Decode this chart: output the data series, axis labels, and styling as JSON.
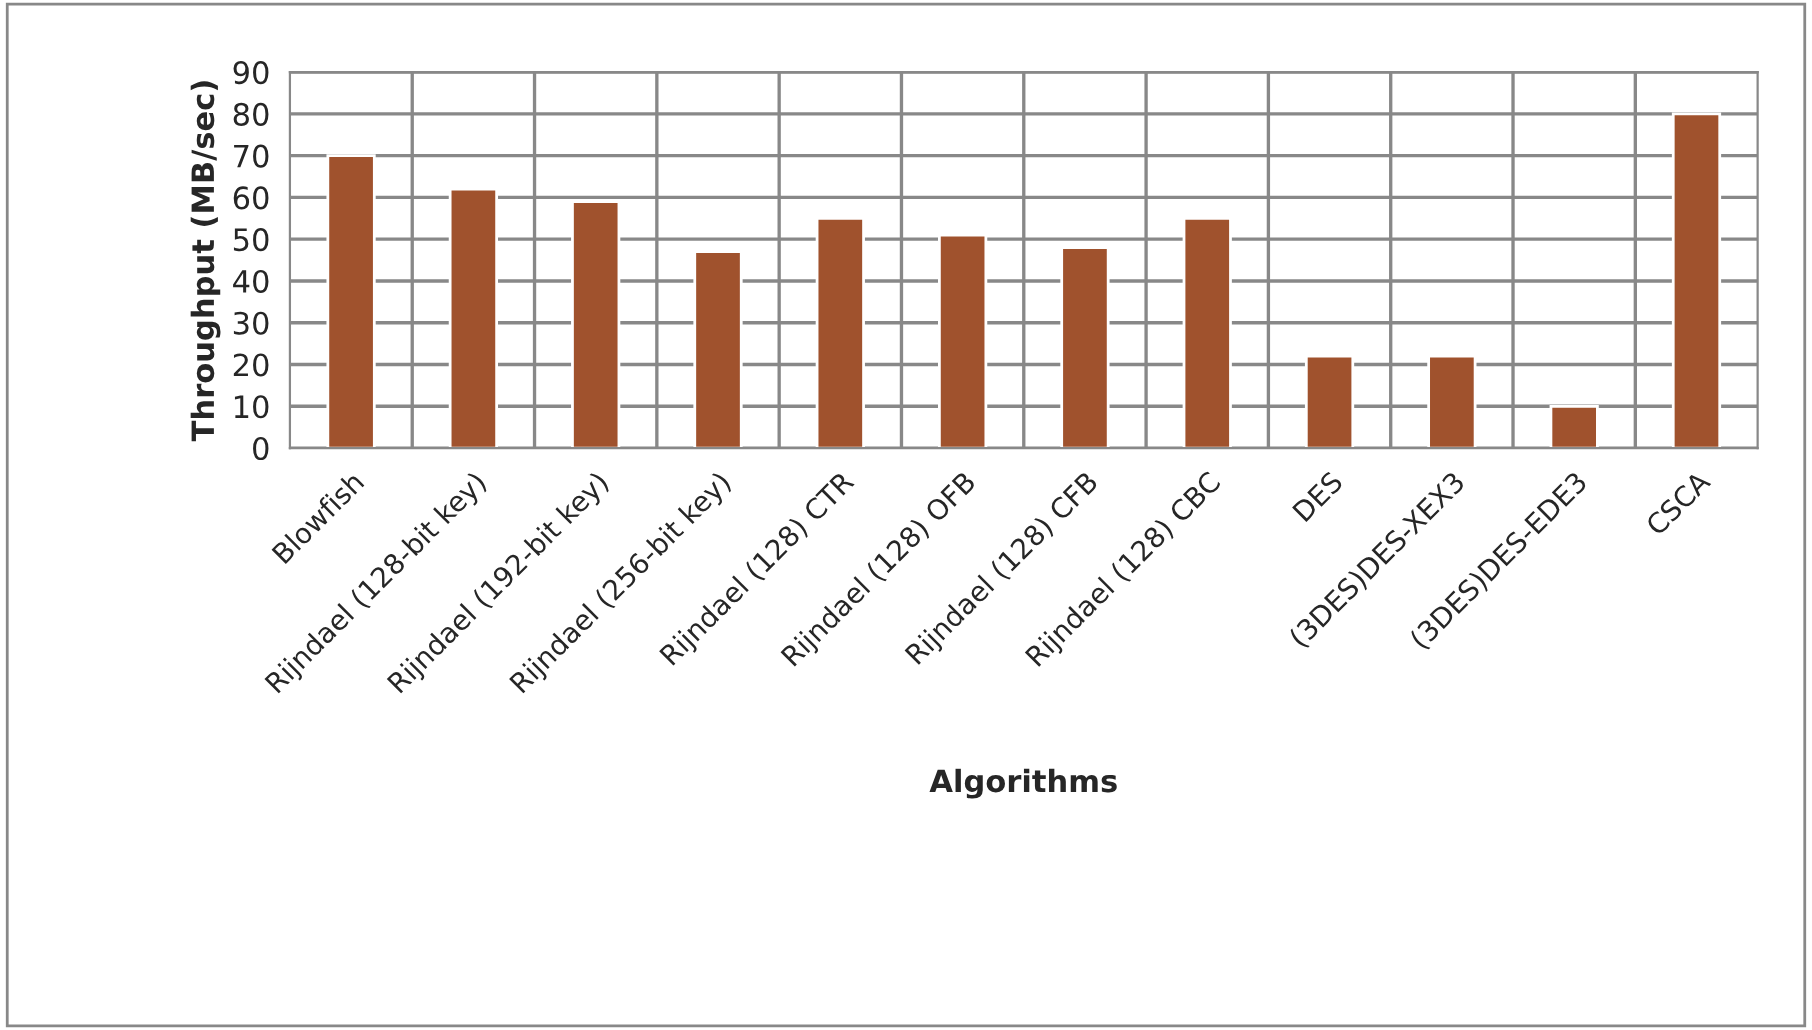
{
  "chart_data": {
    "type": "bar",
    "xlabel": "Algorithms",
    "ylabel": "Throughput (MB/sec)",
    "categories": [
      "Blowfish",
      "Rijndael (128-bit key)",
      "Rijndael (192-bit key)",
      "Rijndael (256-bit key)",
      "Rijndael (128) CTR",
      "Rijndael (128) OFB",
      "Rijndael (128) CFB",
      "Rijndael (128) CBC",
      "DES",
      "(3DES)DES-XEX3",
      "(3DES)DES-EDE3",
      "CSCA"
    ],
    "values": [
      70,
      62,
      59,
      47,
      55,
      51,
      48,
      55,
      22,
      22,
      10,
      80
    ],
    "color": "#a0522d",
    "ylim": [
      0,
      90
    ],
    "yticks": [
      0,
      10,
      20,
      30,
      40,
      50,
      60,
      70,
      80,
      90
    ],
    "grid": true,
    "legend": false
  }
}
